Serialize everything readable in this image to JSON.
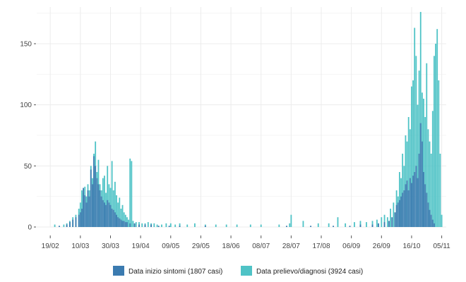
{
  "chart_data": {
    "type": "bar",
    "title": "",
    "xlabel": "",
    "ylabel": "",
    "ylim": [
      0,
      180
    ],
    "yticks": [
      0,
      50,
      100,
      150
    ],
    "date_start": "2020-02-10",
    "date_end": "2020-11-08",
    "x_tick_labels": [
      {
        "label": "19/02",
        "date": "2020-02-19"
      },
      {
        "label": "10/03",
        "date": "2020-03-10"
      },
      {
        "label": "30/03",
        "date": "2020-03-30"
      },
      {
        "label": "19/04",
        "date": "2020-04-19"
      },
      {
        "label": "09/05",
        "date": "2020-05-09"
      },
      {
        "label": "29/05",
        "date": "2020-05-29"
      },
      {
        "label": "18/06",
        "date": "2020-06-18"
      },
      {
        "label": "08/07",
        "date": "2020-07-08"
      },
      {
        "label": "28/07",
        "date": "2020-07-28"
      },
      {
        "label": "17/08",
        "date": "2020-08-17"
      },
      {
        "label": "06/09",
        "date": "2020-09-06"
      },
      {
        "label": "26/09",
        "date": "2020-09-26"
      },
      {
        "label": "16/10",
        "date": "2020-10-16"
      },
      {
        "label": "05/11",
        "date": "2020-11-05"
      }
    ],
    "legend_position": "bottom",
    "grid": true,
    "series": [
      {
        "name": "Data prelievo/diagnosi (3924 casi)",
        "color": "#4fc3c6",
        "points": [
          [
            "2020-02-22",
            2
          ],
          [
            "2020-02-28",
            2
          ],
          [
            "2020-03-01",
            3
          ],
          [
            "2020-03-03",
            5
          ],
          [
            "2020-03-05",
            8
          ],
          [
            "2020-03-07",
            10
          ],
          [
            "2020-03-09",
            15
          ],
          [
            "2020-03-10",
            20
          ],
          [
            "2020-03-11",
            30
          ],
          [
            "2020-03-12",
            28
          ],
          [
            "2020-03-13",
            33
          ],
          [
            "2020-03-14",
            25
          ],
          [
            "2020-03-15",
            35
          ],
          [
            "2020-03-16",
            30
          ],
          [
            "2020-03-17",
            50
          ],
          [
            "2020-03-18",
            40
          ],
          [
            "2020-03-19",
            60
          ],
          [
            "2020-03-20",
            70
          ],
          [
            "2020-03-21",
            45
          ],
          [
            "2020-03-22",
            55
          ],
          [
            "2020-03-23",
            35
          ],
          [
            "2020-03-24",
            30
          ],
          [
            "2020-03-25",
            40
          ],
          [
            "2020-03-26",
            42
          ],
          [
            "2020-03-27",
            28
          ],
          [
            "2020-03-28",
            50
          ],
          [
            "2020-03-29",
            35
          ],
          [
            "2020-03-30",
            32
          ],
          [
            "2020-03-31",
            54
          ],
          [
            "2020-04-01",
            30
          ],
          [
            "2020-04-02",
            37
          ],
          [
            "2020-04-03",
            26
          ],
          [
            "2020-04-04",
            20
          ],
          [
            "2020-04-05",
            24
          ],
          [
            "2020-04-06",
            15
          ],
          [
            "2020-04-07",
            18
          ],
          [
            "2020-04-08",
            12
          ],
          [
            "2020-04-09",
            10
          ],
          [
            "2020-04-10",
            8
          ],
          [
            "2020-04-11",
            6
          ],
          [
            "2020-04-12",
            56
          ],
          [
            "2020-04-13",
            54
          ],
          [
            "2020-04-14",
            5
          ],
          [
            "2020-04-16",
            4
          ],
          [
            "2020-04-18",
            4
          ],
          [
            "2020-04-20",
            3
          ],
          [
            "2020-04-22",
            3
          ],
          [
            "2020-04-24",
            4
          ],
          [
            "2020-04-26",
            3
          ],
          [
            "2020-04-28",
            3
          ],
          [
            "2020-04-30",
            2
          ],
          [
            "2020-05-03",
            2
          ],
          [
            "2020-05-06",
            3
          ],
          [
            "2020-05-09",
            3
          ],
          [
            "2020-05-12",
            2
          ],
          [
            "2020-05-15",
            3
          ],
          [
            "2020-05-20",
            2
          ],
          [
            "2020-05-25",
            3
          ],
          [
            "2020-06-01",
            2
          ],
          [
            "2020-06-08",
            2
          ],
          [
            "2020-06-15",
            2
          ],
          [
            "2020-06-22",
            2
          ],
          [
            "2020-07-01",
            2
          ],
          [
            "2020-07-08",
            2
          ],
          [
            "2020-07-20",
            2
          ],
          [
            "2020-07-27",
            3
          ],
          [
            "2020-07-28",
            10
          ],
          [
            "2020-08-05",
            5
          ],
          [
            "2020-08-15",
            3
          ],
          [
            "2020-08-22",
            3
          ],
          [
            "2020-08-28",
            8
          ],
          [
            "2020-09-02",
            3
          ],
          [
            "2020-09-08",
            4
          ],
          [
            "2020-09-12",
            5
          ],
          [
            "2020-09-16",
            4
          ],
          [
            "2020-09-20",
            5
          ],
          [
            "2020-09-23",
            6
          ],
          [
            "2020-09-26",
            8
          ],
          [
            "2020-09-28",
            10
          ],
          [
            "2020-09-30",
            8
          ],
          [
            "2020-10-02",
            15
          ],
          [
            "2020-10-04",
            20
          ],
          [
            "2020-10-06",
            30
          ],
          [
            "2020-10-07",
            25
          ],
          [
            "2020-10-08",
            45
          ],
          [
            "2020-10-09",
            40
          ],
          [
            "2020-10-10",
            60
          ],
          [
            "2020-10-11",
            50
          ],
          [
            "2020-10-12",
            75
          ],
          [
            "2020-10-13",
            70
          ],
          [
            "2020-10-14",
            90
          ],
          [
            "2020-10-15",
            80
          ],
          [
            "2020-10-16",
            115
          ],
          [
            "2020-10-17",
            120
          ],
          [
            "2020-10-18",
            163
          ],
          [
            "2020-10-19",
            140
          ],
          [
            "2020-10-20",
            100
          ],
          [
            "2020-10-21",
            128
          ],
          [
            "2020-10-22",
            176
          ],
          [
            "2020-10-23",
            110
          ],
          [
            "2020-10-24",
            105
          ],
          [
            "2020-10-25",
            90
          ],
          [
            "2020-10-26",
            134
          ],
          [
            "2020-10-27",
            80
          ],
          [
            "2020-10-28",
            70
          ],
          [
            "2020-10-29",
            60
          ],
          [
            "2020-10-30",
            95
          ],
          [
            "2020-10-31",
            140
          ],
          [
            "2020-11-01",
            150
          ],
          [
            "2020-11-02",
            162
          ],
          [
            "2020-11-03",
            120
          ],
          [
            "2020-11-04",
            60
          ],
          [
            "2020-11-05",
            10
          ]
        ]
      },
      {
        "name": "Data inizio sintomi (1807 casi)",
        "color": "#3b7bb0",
        "points": [
          [
            "2020-02-25",
            1
          ],
          [
            "2020-03-01",
            2
          ],
          [
            "2020-03-03",
            4
          ],
          [
            "2020-03-05",
            6
          ],
          [
            "2020-03-07",
            8
          ],
          [
            "2020-03-09",
            10
          ],
          [
            "2020-03-10",
            12
          ],
          [
            "2020-03-11",
            15
          ],
          [
            "2020-03-12",
            32
          ],
          [
            "2020-03-13",
            26
          ],
          [
            "2020-03-14",
            20
          ],
          [
            "2020-03-15",
            30
          ],
          [
            "2020-03-16",
            25
          ],
          [
            "2020-03-17",
            47
          ],
          [
            "2020-03-18",
            35
          ],
          [
            "2020-03-19",
            58
          ],
          [
            "2020-03-20",
            50
          ],
          [
            "2020-03-21",
            40
          ],
          [
            "2020-03-22",
            35
          ],
          [
            "2020-03-23",
            30
          ],
          [
            "2020-03-24",
            25
          ],
          [
            "2020-03-25",
            22
          ],
          [
            "2020-03-26",
            20
          ],
          [
            "2020-03-27",
            18
          ],
          [
            "2020-03-28",
            22
          ],
          [
            "2020-03-29",
            20
          ],
          [
            "2020-03-30",
            18
          ],
          [
            "2020-03-31",
            15
          ],
          [
            "2020-04-01",
            14
          ],
          [
            "2020-04-02",
            12
          ],
          [
            "2020-04-03",
            10
          ],
          [
            "2020-04-04",
            8
          ],
          [
            "2020-04-05",
            7
          ],
          [
            "2020-04-06",
            6
          ],
          [
            "2020-04-07",
            5
          ],
          [
            "2020-04-08",
            5
          ],
          [
            "2020-04-09",
            4
          ],
          [
            "2020-04-10",
            4
          ],
          [
            "2020-04-12",
            3
          ],
          [
            "2020-04-15",
            3
          ],
          [
            "2020-04-18",
            2
          ],
          [
            "2020-04-22",
            2
          ],
          [
            "2020-04-26",
            2
          ],
          [
            "2020-05-01",
            1
          ],
          [
            "2020-05-08",
            1
          ],
          [
            "2020-05-15",
            1
          ],
          [
            "2020-06-01",
            1
          ],
          [
            "2020-07-25",
            1
          ],
          [
            "2020-08-10",
            1
          ],
          [
            "2020-08-25",
            1
          ],
          [
            "2020-09-05",
            1
          ],
          [
            "2020-09-12",
            2
          ],
          [
            "2020-09-20",
            2
          ],
          [
            "2020-09-24",
            3
          ],
          [
            "2020-09-28",
            4
          ],
          [
            "2020-10-01",
            5
          ],
          [
            "2020-10-03",
            8
          ],
          [
            "2020-10-05",
            12
          ],
          [
            "2020-10-06",
            18
          ],
          [
            "2020-10-07",
            20
          ],
          [
            "2020-10-08",
            22
          ],
          [
            "2020-10-09",
            25
          ],
          [
            "2020-10-10",
            28
          ],
          [
            "2020-10-11",
            30
          ],
          [
            "2020-10-12",
            35
          ],
          [
            "2020-10-13",
            38
          ],
          [
            "2020-10-14",
            30
          ],
          [
            "2020-10-15",
            40
          ],
          [
            "2020-10-16",
            36
          ],
          [
            "2020-10-17",
            42
          ],
          [
            "2020-10-18",
            45
          ],
          [
            "2020-10-19",
            50
          ],
          [
            "2020-10-20",
            40
          ],
          [
            "2020-10-21",
            60
          ],
          [
            "2020-10-22",
            85
          ],
          [
            "2020-10-23",
            70
          ],
          [
            "2020-10-24",
            45
          ],
          [
            "2020-10-25",
            35
          ],
          [
            "2020-10-26",
            28
          ],
          [
            "2020-10-27",
            20
          ],
          [
            "2020-10-28",
            14
          ],
          [
            "2020-10-29",
            10
          ],
          [
            "2020-10-30",
            6
          ],
          [
            "2020-10-31",
            3
          ]
        ]
      }
    ],
    "legend": [
      {
        "name": "Data inizio sintomi (1807 casi)",
        "color": "#3b7bb0"
      },
      {
        "name": "Data prelievo/diagnosi (3924 casi)",
        "color": "#4fc3c6"
      }
    ]
  }
}
